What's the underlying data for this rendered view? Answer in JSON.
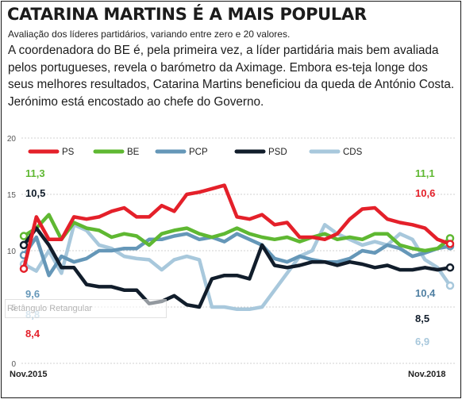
{
  "headline": "CATARINA MARTINS É A MAIS POPULAR",
  "subtitle": "Avaliação dos líderes partidários, variando entre zero e 20 valores.",
  "lead": "A coordenadora do BE é, pela primeira vez, a líder partidária mais bem avaliada pelos portugueses, revela o barómetro da Aximage. Embora es-teja longe dos seus melhores resultados, Catarina Martins beneficiou da queda de António Costa. Jerónimo está encostado ao chefe do Governo.",
  "overlay_label": "Retângulo Retangular",
  "chart_data": {
    "type": "line",
    "ylim": [
      0,
      20
    ],
    "yticks": [
      "0",
      "5",
      "10",
      "15",
      "20"
    ],
    "x_start_label": "Nov.2015",
    "x_end_label": "Nov.2018",
    "x": [
      0,
      1,
      2,
      3,
      4,
      5,
      6,
      7,
      8,
      9,
      10,
      11,
      12,
      13,
      14,
      15,
      16,
      17,
      18,
      19,
      20,
      21,
      22,
      23,
      24,
      25,
      26,
      27,
      28,
      29,
      30,
      31,
      32,
      33,
      34
    ],
    "legend_position": "top",
    "series": [
      {
        "name": "PS",
        "color": "#e4202a",
        "start_label": "8,4",
        "end_label": "10,6",
        "values": [
          8.4,
          13.0,
          11.0,
          11.0,
          13.0,
          12.8,
          13.0,
          13.5,
          13.8,
          13.0,
          13.0,
          14.0,
          13.5,
          15.0,
          15.2,
          15.5,
          15.8,
          13.0,
          12.8,
          13.2,
          12.3,
          12.5,
          11.2,
          11.2,
          11.0,
          11.5,
          12.8,
          13.7,
          13.8,
          12.8,
          12.5,
          12.3,
          12.0,
          11.0,
          10.6
        ]
      },
      {
        "name": "BE",
        "color": "#5fb832",
        "start_label": "11,3",
        "end_label": "11,1",
        "values": [
          11.3,
          12.0,
          13.2,
          11.0,
          12.5,
          12.0,
          11.8,
          11.2,
          11.5,
          11.3,
          10.5,
          11.5,
          11.8,
          12.0,
          11.5,
          11.2,
          11.5,
          12.0,
          11.5,
          11.2,
          11.0,
          11.2,
          10.8,
          11.2,
          11.5,
          11.0,
          11.2,
          11.0,
          11.5,
          11.5,
          10.5,
          10.2,
          10.0,
          10.2,
          11.1
        ]
      },
      {
        "name": "PCP",
        "color": "#6597b8",
        "start_label": "9,6",
        "end_label": "10,4",
        "values": [
          9.6,
          11.2,
          7.8,
          9.5,
          9.0,
          9.3,
          10.0,
          10.0,
          10.2,
          10.2,
          11.0,
          11.0,
          11.3,
          11.5,
          11.0,
          11.2,
          10.8,
          11.5,
          11.0,
          10.5,
          9.3,
          9.0,
          9.5,
          9.2,
          9.0,
          9.0,
          9.3,
          10.0,
          9.8,
          10.5,
          10.2,
          9.5,
          9.8,
          10.2,
          10.4
        ]
      },
      {
        "name": "PSD",
        "color": "#111d2b",
        "start_label": "10,5",
        "end_label": "8,5",
        "values": [
          10.5,
          12.0,
          10.5,
          8.5,
          8.5,
          7.0,
          6.8,
          6.8,
          6.5,
          6.5,
          5.3,
          5.5,
          6.0,
          5.2,
          5.0,
          7.5,
          7.8,
          7.8,
          7.5,
          10.5,
          8.7,
          8.5,
          8.7,
          9.0,
          9.0,
          8.7,
          9.0,
          8.8,
          8.5,
          8.7,
          8.3,
          8.3,
          8.5,
          8.3,
          8.5
        ]
      },
      {
        "name": "CDS",
        "color": "#a8c8dc",
        "start_label": "8,8",
        "end_label": "6,9",
        "values": [
          8.8,
          8.2,
          10.0,
          8.0,
          12.3,
          11.8,
          10.5,
          10.2,
          9.5,
          9.3,
          9.2,
          8.3,
          9.2,
          9.5,
          9.2,
          5.0,
          5.0,
          4.8,
          4.8,
          5.0,
          6.5,
          8.0,
          9.5,
          10.0,
          12.3,
          11.5,
          11.0,
          10.5,
          10.8,
          10.5,
          11.5,
          11.0,
          9.2,
          8.5,
          6.9
        ]
      }
    ]
  }
}
